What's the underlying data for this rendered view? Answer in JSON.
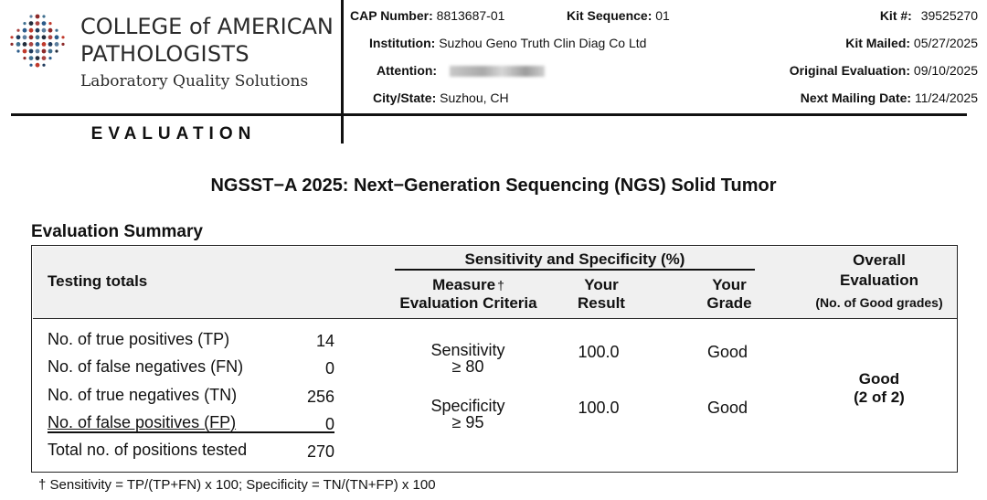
{
  "logo": {
    "line1": "COLLEGE of AMERICAN",
    "line2": "PATHOLOGISTS",
    "line3": "Laboratory Quality Solutions"
  },
  "document_type": "EVALUATION",
  "header": {
    "cap_number_label": "CAP Number:",
    "cap_number": "8813687-01",
    "kit_sequence_label": "Kit Sequence:",
    "kit_sequence": "01",
    "kit_number_label": "Kit #:",
    "kit_number": "39525270",
    "institution_label": "Institution:",
    "institution": "Suzhou Geno Truth Clin Diag Co Ltd",
    "kit_mailed_label": "Kit Mailed:",
    "kit_mailed": "05/27/2025",
    "attention_label": "Attention:",
    "original_evaluation_label": "Original Evaluation:",
    "original_evaluation": "09/10/2025",
    "city_state_label": "City/State:",
    "city_state": "Suzhou, CH",
    "next_mailing_label": "Next Mailing Date:",
    "next_mailing": "11/24/2025"
  },
  "title": "NGSST−A 2025: Next−Generation Sequencing (NGS) Solid Tumor",
  "section_title": "Evaluation Summary",
  "table": {
    "col_testing_totals": "Testing totals",
    "group_header": "Sensitivity and Specificity (%)",
    "col_measure_line1": "Measure",
    "col_measure_dagger": "†",
    "col_measure_line2": "Evaluation Criteria",
    "col_result_line1": "Your",
    "col_result_line2": "Result",
    "col_grade_line1": "Your",
    "col_grade_line2": "Grade",
    "col_overall_line1": "Overall",
    "col_overall_line2": "Evaluation",
    "col_overall_line3": "(No. of Good grades)",
    "totals": [
      {
        "label": "No. of true positives (TP)",
        "value": "14"
      },
      {
        "label": "No. of false negatives (FN)",
        "value": "0"
      },
      {
        "label": "No. of true negatives (TN)",
        "value": "256"
      },
      {
        "label": "No. of false positives (FP)",
        "value": "0"
      },
      {
        "label": "Total no. of positions tested",
        "value": "270"
      }
    ],
    "measures": [
      {
        "name": "Sensitivity",
        "criteria": "≥ 80",
        "result": "100.0",
        "grade": "Good"
      },
      {
        "name": "Specificity",
        "criteria": "≥ 95",
        "result": "100.0",
        "grade": "Good"
      }
    ],
    "overall_grade": "Good",
    "overall_count": "(2 of 2)"
  },
  "footnote": "† Sensitivity = TP/(TP+FN) x 100; Specificity = TN/(TN+FP) x 100"
}
